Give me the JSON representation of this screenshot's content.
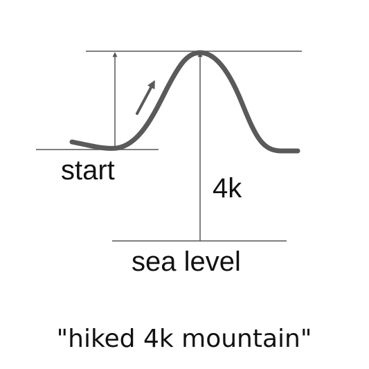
{
  "labels": {
    "start": "start",
    "height": "4k",
    "sea_level": "sea level"
  },
  "caption": "\"hiked 4k mountain\"",
  "colors": {
    "line": "#555555",
    "curve": "#5a5a5a",
    "text": "#111111",
    "background": "#ffffff"
  }
}
